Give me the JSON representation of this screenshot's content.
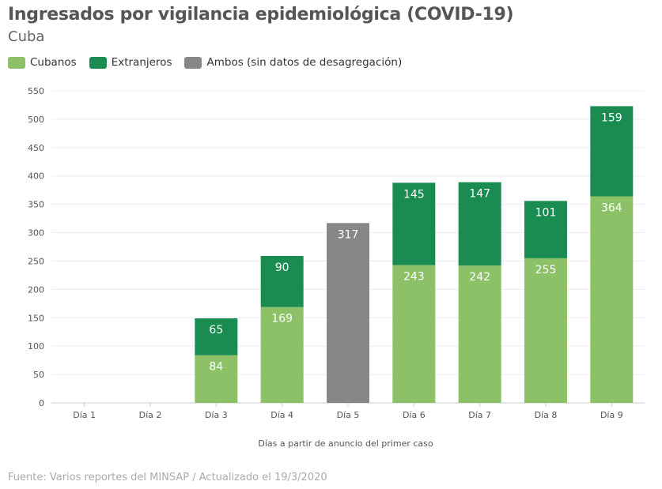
{
  "chart_data": {
    "type": "bar",
    "stacked": true,
    "title": "Ingresados por vigilancia epidemiológica (COVID-19)",
    "subtitle": "Cuba",
    "categories": [
      "Día 1",
      "Día 2",
      "Día 3",
      "Día 4",
      "Día 5",
      "Día 6",
      "Día 7",
      "Día 8",
      "Día 9"
    ],
    "series": [
      {
        "name": "Cubanos",
        "color": "#8cc168",
        "values": [
          null,
          null,
          84,
          169,
          null,
          243,
          242,
          255,
          364
        ]
      },
      {
        "name": "Extranjeros",
        "color": "#1a8c52",
        "values": [
          null,
          null,
          65,
          90,
          null,
          145,
          147,
          101,
          159
        ]
      },
      {
        "name": "Ambos (sin datos de desagregación)",
        "color": "#878787",
        "values": [
          null,
          null,
          null,
          null,
          317,
          null,
          null,
          null,
          null
        ]
      }
    ],
    "xlabel": "Días a partir de anuncio del primer caso",
    "ylabel": "",
    "ylim": [
      0,
      550
    ],
    "yticks": [
      0,
      50,
      100,
      150,
      200,
      250,
      300,
      350,
      400,
      450,
      500,
      550
    ],
    "grid": true,
    "legend": "top-left",
    "source": "Fuente: Varios reportes del MINSAP / Actualizado el 19/3/2020"
  }
}
